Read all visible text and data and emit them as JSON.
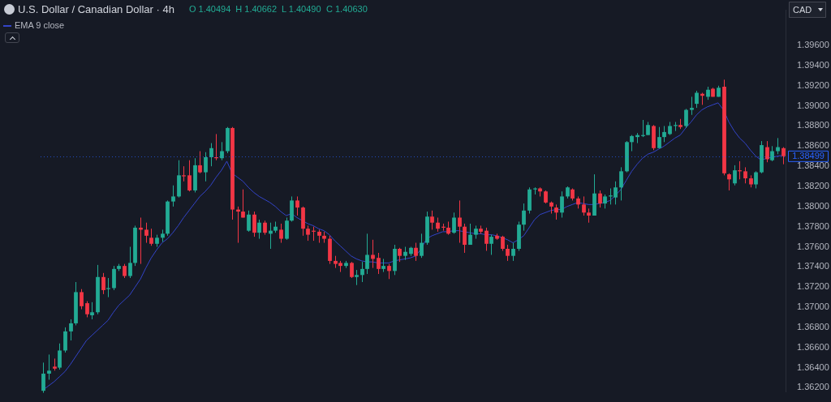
{
  "chart_data": {
    "type": "candlestick",
    "title": "U.S. Dollar / Canadian Dollar · 4h",
    "ylabel": "CAD",
    "annotations": [
      "O 1.40494",
      "H 1.40662",
      "L 1.40490",
      "C 1.40630"
    ],
    "ref_lines": [
      {
        "axis": "y",
        "value": 1.38499,
        "label": "1.38499",
        "color": "#2962ff",
        "line_style": "dotted"
      }
    ],
    "categories": [
      null,
      null,
      null,
      null,
      null,
      null,
      null,
      null,
      null,
      null,
      null,
      null,
      null,
      null,
      null,
      null,
      null,
      null,
      null,
      null,
      null,
      null,
      null,
      null,
      null,
      null,
      null,
      null,
      null,
      null,
      null,
      null,
      null,
      null,
      null,
      null,
      null,
      null,
      null,
      null,
      null,
      null,
      null,
      null,
      null,
      null,
      null,
      null,
      null,
      null,
      null,
      null,
      null,
      null,
      null,
      null,
      null,
      null,
      null,
      null,
      null,
      null,
      null,
      null,
      null,
      null,
      null,
      null,
      null,
      null,
      null,
      null,
      null,
      null,
      null,
      null,
      null,
      null,
      null,
      null,
      null,
      null,
      null,
      null,
      null,
      null,
      null,
      null,
      null,
      null,
      null,
      null,
      null,
      null,
      null,
      null,
      null,
      null,
      null,
      null,
      null,
      null,
      null,
      null,
      null,
      null,
      null,
      null,
      null,
      null,
      null,
      null,
      null,
      null,
      null,
      null,
      null,
      null,
      null,
      null,
      null,
      null,
      null,
      null,
      null,
      null,
      null,
      null,
      null,
      null,
      null,
      null,
      null,
      null,
      null,
      null,
      null,
      null
    ],
    "ohlc": [
      [
        1.3617,
        1.3645,
        1.3615,
        1.3634
      ],
      [
        1.3634,
        1.3653,
        1.3628,
        1.3637
      ],
      [
        1.3641,
        1.3649,
        1.3637,
        1.3639
      ],
      [
        1.364,
        1.3664,
        1.3638,
        1.3657
      ],
      [
        1.3657,
        1.368,
        1.3655,
        1.3676
      ],
      [
        1.3676,
        1.3688,
        1.3667,
        1.3684
      ],
      [
        1.3684,
        1.3725,
        1.3682,
        1.3715
      ],
      [
        1.3715,
        1.3718,
        1.3698,
        1.3701
      ],
      [
        1.3704,
        1.3706,
        1.369,
        1.3693
      ],
      [
        1.3692,
        1.3705,
        1.3688,
        1.3695
      ],
      [
        1.3695,
        1.3742,
        1.3693,
        1.373
      ],
      [
        1.373,
        1.3734,
        1.3713,
        1.3717
      ],
      [
        1.3718,
        1.3729,
        1.371,
        1.3719
      ],
      [
        1.3719,
        1.3741,
        1.3717,
        1.3738
      ],
      [
        1.3738,
        1.3743,
        1.3736,
        1.3741
      ],
      [
        1.3741,
        1.3743,
        1.3729,
        1.3731
      ],
      [
        1.3731,
        1.376,
        1.3729,
        1.3744
      ],
      [
        1.3744,
        1.3781,
        1.3741,
        1.3779
      ],
      [
        1.3779,
        1.3789,
        1.3743,
        1.3777
      ],
      [
        1.3777,
        1.3784,
        1.3764,
        1.3771
      ],
      [
        1.3769,
        1.3778,
        1.3761,
        1.3763
      ],
      [
        1.3763,
        1.3772,
        1.376,
        1.3769
      ],
      [
        1.3769,
        1.3777,
        1.3765,
        1.3773
      ],
      [
        1.3773,
        1.3806,
        1.3771,
        1.3805
      ],
      [
        1.3805,
        1.3821,
        1.38,
        1.381
      ],
      [
        1.381,
        1.3846,
        1.3809,
        1.3831
      ],
      [
        1.3831,
        1.384,
        1.3825,
        1.383
      ],
      [
        1.3831,
        1.3846,
        1.3815,
        1.3816
      ],
      [
        1.3816,
        1.3848,
        1.3814,
        1.3841
      ],
      [
        1.3841,
        1.3855,
        1.3833,
        1.3834
      ],
      [
        1.3834,
        1.3854,
        1.3825,
        1.3849
      ],
      [
        1.3849,
        1.3863,
        1.384,
        1.3858
      ],
      [
        1.3849,
        1.3872,
        1.3846,
        1.3848
      ],
      [
        1.3848,
        1.3864,
        1.3846,
        1.3855
      ],
      [
        1.3855,
        1.3879,
        1.3853,
        1.3878
      ],
      [
        1.3878,
        1.3879,
        1.3787,
        1.3797
      ],
      [
        1.3797,
        1.38,
        1.3764,
        1.3795
      ],
      [
        1.3795,
        1.3817,
        1.3789,
        1.3789
      ],
      [
        1.3776,
        1.3796,
        1.3775,
        1.3792
      ],
      [
        1.3792,
        1.3795,
        1.377,
        1.3774
      ],
      [
        1.3774,
        1.3787,
        1.3768,
        1.3784
      ],
      [
        1.3784,
        1.3786,
        1.3772,
        1.3774
      ],
      [
        1.3773,
        1.3784,
        1.3758,
        1.3776
      ],
      [
        1.3776,
        1.3785,
        1.3774,
        1.378
      ],
      [
        1.3777,
        1.3783,
        1.3764,
        1.3768
      ],
      [
        1.3768,
        1.3789,
        1.3767,
        1.3786
      ],
      [
        1.3786,
        1.381,
        1.3785,
        1.3806
      ],
      [
        1.3806,
        1.381,
        1.3791,
        1.3799
      ],
      [
        1.3799,
        1.38,
        1.3771,
        1.3778
      ],
      [
        1.3778,
        1.3781,
        1.3766,
        1.3772
      ],
      [
        1.3776,
        1.378,
        1.3766,
        1.3775
      ],
      [
        1.3775,
        1.3777,
        1.3764,
        1.3771
      ],
      [
        1.3771,
        1.3775,
        1.3764,
        1.3768
      ],
      [
        1.3768,
        1.3771,
        1.3743,
        1.3746
      ],
      [
        1.3746,
        1.3751,
        1.3739,
        1.3743
      ],
      [
        1.3744,
        1.3746,
        1.3735,
        1.3741
      ],
      [
        1.3741,
        1.3746,
        1.3739,
        1.3744
      ],
      [
        1.3744,
        1.3745,
        1.3729,
        1.373
      ],
      [
        1.373,
        1.3737,
        1.3722,
        1.3732
      ],
      [
        1.3732,
        1.3745,
        1.3725,
        1.3738
      ],
      [
        1.3738,
        1.3773,
        1.3733,
        1.3752
      ],
      [
        1.3752,
        1.3767,
        1.3739,
        1.3748
      ],
      [
        1.3749,
        1.3754,
        1.3733,
        1.3738
      ],
      [
        1.3738,
        1.3748,
        1.3735,
        1.3741
      ],
      [
        1.3741,
        1.3743,
        1.3728,
        1.3736
      ],
      [
        1.3736,
        1.3762,
        1.3732,
        1.3758
      ],
      [
        1.3758,
        1.3759,
        1.3745,
        1.3751
      ],
      [
        1.3751,
        1.376,
        1.3747,
        1.3755
      ],
      [
        1.3753,
        1.376,
        1.3751,
        1.3759
      ],
      [
        1.3759,
        1.3764,
        1.3746,
        1.3751
      ],
      [
        1.3751,
        1.3773,
        1.3749,
        1.3764
      ],
      [
        1.3764,
        1.3795,
        1.3762,
        1.379
      ],
      [
        1.379,
        1.3796,
        1.3777,
        1.3784
      ],
      [
        1.3784,
        1.3789,
        1.3775,
        1.3778
      ],
      [
        1.378,
        1.3783,
        1.3776,
        1.3779
      ],
      [
        1.3779,
        1.3785,
        1.3772,
        1.3773
      ],
      [
        1.3774,
        1.3794,
        1.3773,
        1.3789
      ],
      [
        1.3789,
        1.3806,
        1.3764,
        1.378
      ],
      [
        1.378,
        1.3783,
        1.3754,
        1.3762
      ],
      [
        1.3762,
        1.3783,
        1.3762,
        1.3772
      ],
      [
        1.3772,
        1.3781,
        1.3768,
        1.3778
      ],
      [
        1.3778,
        1.3781,
        1.3773,
        1.3775
      ],
      [
        1.3776,
        1.3779,
        1.3756,
        1.3763
      ],
      [
        1.3763,
        1.3772,
        1.3752,
        1.377
      ],
      [
        1.3771,
        1.3773,
        1.3767,
        1.3768
      ],
      [
        1.377,
        1.3771,
        1.3756,
        1.3758
      ],
      [
        1.3758,
        1.3762,
        1.3746,
        1.3751
      ],
      [
        1.3751,
        1.3764,
        1.3746,
        1.3758
      ],
      [
        1.3758,
        1.3785,
        1.3756,
        1.3782
      ],
      [
        1.3782,
        1.3803,
        1.3776,
        1.3796
      ],
      [
        1.3796,
        1.3819,
        1.3793,
        1.3817
      ],
      [
        1.3817,
        1.3819,
        1.3812,
        1.3818
      ],
      [
        1.3818,
        1.3819,
        1.381,
        1.3815
      ],
      [
        1.3815,
        1.3816,
        1.3803,
        1.3804
      ],
      [
        1.3804,
        1.3805,
        1.3793,
        1.38
      ],
      [
        1.3799,
        1.3802,
        1.3787,
        1.3794
      ],
      [
        1.3794,
        1.3815,
        1.3789,
        1.381
      ],
      [
        1.381,
        1.382,
        1.3808,
        1.3819
      ],
      [
        1.3817,
        1.3818,
        1.3806,
        1.3808
      ],
      [
        1.3808,
        1.381,
        1.3798,
        1.3802
      ],
      [
        1.3802,
        1.381,
        1.3791,
        1.3794
      ],
      [
        1.3794,
        1.3798,
        1.3784,
        1.3791
      ],
      [
        1.3791,
        1.3832,
        1.3791,
        1.3813
      ],
      [
        1.3813,
        1.3816,
        1.3799,
        1.3803
      ],
      [
        1.3803,
        1.3812,
        1.3798,
        1.381
      ],
      [
        1.381,
        1.3818,
        1.3802,
        1.3811
      ],
      [
        1.3809,
        1.3825,
        1.3802,
        1.3819
      ],
      [
        1.3819,
        1.3839,
        1.3806,
        1.3835
      ],
      [
        1.3835,
        1.3865,
        1.3834,
        1.3864
      ],
      [
        1.3864,
        1.3871,
        1.3855,
        1.387
      ],
      [
        1.3869,
        1.3873,
        1.3863,
        1.3871
      ],
      [
        1.387,
        1.3886,
        1.3869,
        1.3871
      ],
      [
        1.3871,
        1.3884,
        1.3871,
        1.3881
      ],
      [
        1.388,
        1.3881,
        1.3856,
        1.3858
      ],
      [
        1.3858,
        1.3879,
        1.3858,
        1.3869
      ],
      [
        1.3869,
        1.388,
        1.3864,
        1.3874
      ],
      [
        1.3872,
        1.3884,
        1.3871,
        1.388
      ],
      [
        1.388,
        1.3884,
        1.3875,
        1.3881
      ],
      [
        1.3881,
        1.3887,
        1.3877,
        1.3879
      ],
      [
        1.388,
        1.3897,
        1.3878,
        1.3896
      ],
      [
        1.3896,
        1.3909,
        1.3891,
        1.3898
      ],
      [
        1.3902,
        1.3915,
        1.3898,
        1.3913
      ],
      [
        1.3912,
        1.3913,
        1.3901,
        1.391
      ],
      [
        1.3909,
        1.3919,
        1.3906,
        1.3916
      ],
      [
        1.3917,
        1.3918,
        1.3909,
        1.3909
      ],
      [
        1.3909,
        1.392,
        1.3909,
        1.3918
      ],
      [
        1.3919,
        1.3926,
        1.3831,
        1.3833
      ],
      [
        1.3832,
        1.3833,
        1.3816,
        1.3827
      ],
      [
        1.3823,
        1.3841,
        1.3821,
        1.3836
      ],
      [
        1.3836,
        1.3845,
        1.3827,
        1.3835
      ],
      [
        1.3835,
        1.3839,
        1.3823,
        1.3828
      ],
      [
        1.3828,
        1.3831,
        1.3819,
        1.3822
      ],
      [
        1.3822,
        1.3835,
        1.3818,
        1.3834
      ],
      [
        1.3834,
        1.3865,
        1.3833,
        1.3861
      ],
      [
        1.3859,
        1.3865,
        1.3844,
        1.3847
      ],
      [
        1.3846,
        1.386,
        1.3845,
        1.3855
      ],
      [
        1.3855,
        1.3868,
        1.3852,
        1.3859
      ],
      [
        1.3858,
        1.3859,
        1.3842,
        1.385
      ]
    ],
    "colors": [
      "#22ab94",
      "#22ab94",
      "#f23645",
      "#22ab94",
      "#22ab94",
      "#22ab94",
      "#22ab94",
      "#f23645",
      "#f23645",
      "#22ab94",
      "#22ab94",
      "#f23645",
      "#22ab94",
      "#22ab94",
      "#22ab94",
      "#f23645",
      "#22ab94",
      "#22ab94",
      "#f23645",
      "#f23645",
      "#f23645",
      "#22ab94",
      "#22ab94",
      "#22ab94",
      "#22ab94",
      "#22ab94",
      "#f23645",
      "#f23645",
      "#22ab94",
      "#f23645",
      "#22ab94",
      "#22ab94",
      "#f23645",
      "#22ab94",
      "#22ab94",
      "#f23645",
      "#f23645",
      "#f23645",
      "#22ab94",
      "#f23645",
      "#22ab94",
      "#f23645",
      "#22ab94",
      "#22ab94",
      "#f23645",
      "#22ab94",
      "#22ab94",
      "#f23645",
      "#f23645",
      "#f23645",
      "#f23645",
      "#f23645",
      "#f23645",
      "#f23645",
      "#f23645",
      "#f23645",
      "#22ab94",
      "#f23645",
      "#22ab94",
      "#22ab94",
      "#22ab94",
      "#f23645",
      "#f23645",
      "#22ab94",
      "#f23645",
      "#22ab94",
      "#f23645",
      "#22ab94",
      "#22ab94",
      "#f23645",
      "#22ab94",
      "#22ab94",
      "#f23645",
      "#f23645",
      "#f23645",
      "#f23645",
      "#22ab94",
      "#f23645",
      "#f23645",
      "#22ab94",
      "#22ab94",
      "#f23645",
      "#f23645",
      "#22ab94",
      "#f23645",
      "#f23645",
      "#f23645",
      "#22ab94",
      "#22ab94",
      "#22ab94",
      "#22ab94",
      "#22ab94",
      "#f23645",
      "#f23645",
      "#f23645",
      "#f23645",
      "#22ab94",
      "#22ab94",
      "#f23645",
      "#f23645",
      "#f23645",
      "#f23645",
      "#22ab94",
      "#f23645",
      "#22ab94",
      "#22ab94",
      "#22ab94",
      "#22ab94",
      "#22ab94",
      "#22ab94",
      "#22ab94",
      "#22ab94",
      "#22ab94",
      "#f23645",
      "#22ab94",
      "#22ab94",
      "#22ab94",
      "#22ab94",
      "#f23645",
      "#22ab94",
      "#22ab94",
      "#22ab94",
      "#f23645",
      "#22ab94",
      "#f23645",
      "#22ab94",
      "#f23645",
      "#f23645",
      "#22ab94",
      "#f23645",
      "#f23645",
      "#f23645",
      "#22ab94",
      "#22ab94",
      "#f23645",
      "#22ab94",
      "#22ab94",
      "#f23645"
    ],
    "series": [
      {
        "name": "EMA 9 close",
        "type": "line",
        "color": "#3344c8",
        "values": [
          1.3618,
          1.3622,
          1.3626,
          1.3631,
          1.3636,
          1.3643,
          1.3651,
          1.3659,
          1.3667,
          1.3672,
          1.3677,
          1.3682,
          1.3687,
          1.3695,
          1.3702,
          1.3707,
          1.3712,
          1.372,
          1.3728,
          1.3739,
          1.3749,
          1.3757,
          1.3764,
          1.3768,
          1.3774,
          1.3781,
          1.3789,
          1.3796,
          1.3803,
          1.381,
          1.3815,
          1.3821,
          1.3829,
          1.3836,
          1.3845,
          1.3833,
          1.3829,
          1.3825,
          1.3819,
          1.3814,
          1.381,
          1.3807,
          1.3804,
          1.38,
          1.3795,
          1.3791,
          1.3793,
          1.3789,
          1.3786,
          1.3783,
          1.3781,
          1.3778,
          1.3776,
          1.3772,
          1.3766,
          1.3761,
          1.3756,
          1.3751,
          1.3748,
          1.3746,
          1.3745,
          1.3745,
          1.3744,
          1.3744,
          1.3744,
          1.3746,
          1.3747,
          1.3748,
          1.3749,
          1.3751,
          1.3758,
          1.3768,
          1.3771,
          1.3773,
          1.3775,
          1.3775,
          1.3776,
          1.3776,
          1.3775,
          1.3774,
          1.3773,
          1.3773,
          1.3772,
          1.3772,
          1.3771,
          1.3769,
          1.3767,
          1.3764,
          1.3767,
          1.3771,
          1.3779,
          1.3787,
          1.3792,
          1.3794,
          1.3796,
          1.3797,
          1.3797,
          1.38,
          1.3802,
          1.3804,
          1.3803,
          1.3802,
          1.3802,
          1.3803,
          1.3804,
          1.3806,
          1.3811,
          1.3817,
          1.3826,
          1.3835,
          1.3842,
          1.3848,
          1.3852,
          1.3854,
          1.3857,
          1.386,
          1.3864,
          1.3868,
          1.3871,
          1.3878,
          1.3884,
          1.3891,
          1.3896,
          1.3899,
          1.3901,
          1.3903,
          1.3896,
          1.3884,
          1.3875,
          1.3868,
          1.3863,
          1.3856,
          1.385,
          1.3846,
          1.3848,
          1.3849,
          1.385,
          1.3851
        ]
      }
    ],
    "ylim": [
      1.3616,
      1.3995
    ],
    "yticks": [
      {
        "value": 1.362,
        "label": "1.36200"
      },
      {
        "value": 1.364,
        "label": "1.36400"
      },
      {
        "value": 1.366,
        "label": "1.36600"
      },
      {
        "value": 1.368,
        "label": "1.36800"
      },
      {
        "value": 1.37,
        "label": "1.37000"
      },
      {
        "value": 1.372,
        "label": "1.37200"
      },
      {
        "value": 1.374,
        "label": "1.37400"
      },
      {
        "value": 1.376,
        "label": "1.37600"
      },
      {
        "value": 1.378,
        "label": "1.37800"
      },
      {
        "value": 1.38,
        "label": "1.38000"
      },
      {
        "value": 1.382,
        "label": "1.38200"
      },
      {
        "value": 1.384,
        "label": "1.38400"
      },
      {
        "value": 1.386,
        "label": "1.38600"
      },
      {
        "value": 1.388,
        "label": "1.38800"
      },
      {
        "value": 1.39,
        "label": "1.39000"
      },
      {
        "value": 1.392,
        "label": "1.39200"
      },
      {
        "value": 1.394,
        "label": "1.39400"
      },
      {
        "value": 1.396,
        "label": "1.39600"
      }
    ],
    "legend": "top left"
  }
}
